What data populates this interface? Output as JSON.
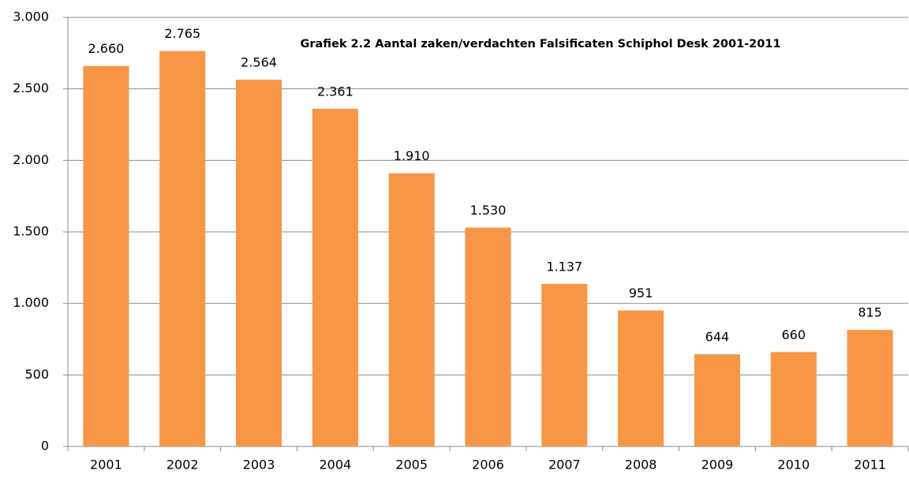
{
  "chart_data": {
    "type": "bar",
    "title": "Grafiek 2.2 Aantal zaken/verdachten Falsificaten  Schiphol Desk 2001-2011",
    "categories": [
      "2001",
      "2002",
      "2003",
      "2004",
      "2005",
      "2006",
      "2007",
      "2008",
      "2009",
      "2010",
      "2011"
    ],
    "values": [
      2660,
      2765,
      2564,
      2361,
      1910,
      1530,
      1137,
      951,
      644,
      660,
      815
    ],
    "value_labels": [
      "2.660",
      "2.765",
      "2.564",
      "2.361",
      "1.910",
      "1.530",
      "1.137",
      "951",
      "644",
      "660",
      "815"
    ],
    "color": "#f79646",
    "ylim": [
      0,
      3000
    ],
    "yticks": [
      0,
      500,
      {
        "value": 1000,
        "label": "1.000"
      },
      {
        "value": 1500,
        "label": "1.500"
      },
      {
        "value": 2000,
        "label": "2.000"
      },
      {
        "value": 2500,
        "label": "2.500"
      },
      {
        "value": 3000,
        "label": "3.000"
      }
    ],
    "grid": true
  }
}
